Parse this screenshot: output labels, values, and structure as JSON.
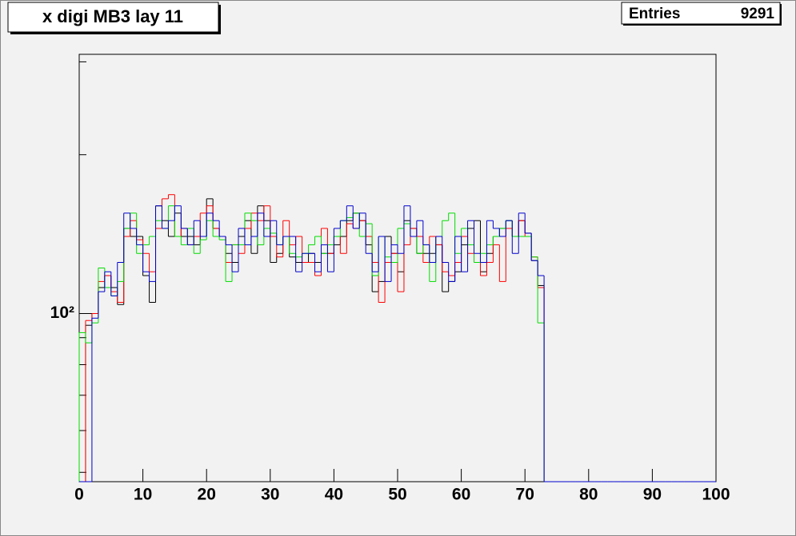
{
  "chart_data": {
    "type": "histogram",
    "title": "x digi MB3 lay 11",
    "stats": {
      "label": "Entries",
      "value": 9291
    },
    "bins": [
      0,
      1,
      2,
      3,
      4,
      5,
      6,
      7,
      8,
      9,
      10,
      11,
      12,
      13,
      14,
      15,
      16,
      17,
      18,
      19,
      20,
      21,
      22,
      23,
      24,
      25,
      26,
      27,
      28,
      29,
      30,
      31,
      32,
      33,
      34,
      35,
      36,
      37,
      38,
      39,
      40,
      41,
      42,
      43,
      44,
      45,
      46,
      47,
      48,
      49,
      50,
      51,
      52,
      53,
      54,
      55,
      56,
      57,
      58,
      59,
      60,
      61,
      62,
      63,
      64,
      65,
      66,
      67,
      68,
      69,
      70,
      71,
      72,
      73,
      74,
      75,
      76,
      77,
      78,
      79,
      80,
      81,
      82,
      83,
      84,
      85,
      86,
      87,
      88,
      89,
      90,
      91,
      92,
      93,
      94,
      95,
      96,
      97,
      98,
      99,
      100
    ],
    "series": [
      {
        "color": "#000000",
        "values": [
          0,
          95,
          100,
          112,
          118,
          112,
          104,
          145,
          140,
          140,
          118,
          105,
          160,
          150,
          140,
          155,
          140,
          140,
          135,
          140,
          165,
          145,
          140,
          130,
          125,
          140,
          150,
          130,
          160,
          150,
          125,
          130,
          140,
          128,
          125,
          125,
          130,
          125,
          130,
          130,
          135,
          140,
          150,
          155,
          150,
          135,
          110,
          115,
          140,
          130,
          120,
          150,
          145,
          130,
          130,
          130,
          135,
          110,
          115,
          120,
          135,
          145,
          150,
          120,
          130,
          140,
          145,
          150,
          140,
          150,
          142,
          126,
          113,
          0,
          0,
          0,
          0,
          0,
          0,
          0,
          0,
          0,
          0,
          0,
          0,
          0,
          0,
          0,
          0,
          0,
          0,
          0,
          0,
          0,
          0,
          0,
          0,
          0,
          0,
          0
        ]
      },
      {
        "color": "#ff0000",
        "values": [
          0,
          97,
          100,
          115,
          118,
          110,
          105,
          140,
          150,
          138,
          130,
          120,
          145,
          165,
          168,
          140,
          145,
          135,
          140,
          155,
          160,
          145,
          140,
          125,
          135,
          130,
          145,
          155,
          150,
          160,
          140,
          128,
          150,
          135,
          140,
          125,
          125,
          118,
          145,
          130,
          140,
          130,
          148,
          145,
          150,
          140,
          125,
          105,
          125,
          130,
          110,
          135,
          145,
          140,
          125,
          140,
          135,
          120,
          118,
          125,
          140,
          130,
          125,
          118,
          125,
          135,
          115,
          145,
          140,
          150,
          140,
          128,
          112,
          0,
          0,
          0,
          0,
          0,
          0,
          0,
          0,
          0,
          0,
          0,
          0,
          0,
          0,
          0,
          0,
          0,
          0,
          0,
          0,
          0,
          0,
          0,
          0,
          0,
          0,
          0
        ]
      },
      {
        "color": "#00dd00",
        "values": [
          92,
          88,
          96,
          122,
          112,
          108,
          115,
          145,
          155,
          130,
          135,
          140,
          150,
          145,
          160,
          140,
          135,
          145,
          130,
          138,
          150,
          140,
          138,
          115,
          135,
          135,
          155,
          150,
          135,
          145,
          142,
          135,
          140,
          130,
          128,
          130,
          135,
          140,
          130,
          135,
          140,
          150,
          152,
          155,
          140,
          148,
          118,
          140,
          128,
          125,
          145,
          148,
          140,
          130,
          135,
          115,
          140,
          150,
          155,
          130,
          145,
          135,
          125,
          130,
          135,
          140,
          145,
          150,
          140,
          140,
          140,
          128,
          96,
          0,
          0,
          0,
          0,
          0,
          0,
          0,
          0,
          0,
          0,
          0,
          0,
          0,
          0,
          0,
          0,
          0,
          0,
          0,
          0,
          0,
          0,
          0,
          0,
          0,
          0,
          0
        ]
      },
      {
        "color": "#0000cc",
        "values": [
          0,
          0,
          98,
          110,
          120,
          108,
          125,
          155,
          145,
          135,
          120,
          115,
          160,
          145,
          150,
          160,
          145,
          135,
          150,
          140,
          155,
          150,
          140,
          135,
          120,
          145,
          135,
          140,
          155,
          140,
          150,
          135,
          140,
          140,
          120,
          130,
          130,
          120,
          135,
          120,
          145,
          150,
          160,
          145,
          155,
          130,
          120,
          140,
          115,
          135,
          130,
          160,
          140,
          150,
          135,
          125,
          140,
          125,
          115,
          140,
          120,
          150,
          130,
          125,
          150,
          145,
          140,
          150,
          130,
          155,
          142,
          126,
          118,
          0,
          0,
          0,
          0,
          0,
          0,
          0,
          0,
          0,
          0,
          0,
          0,
          0,
          0,
          0,
          0,
          0,
          0,
          0,
          0,
          0,
          0,
          0,
          0,
          0,
          0,
          0
        ]
      }
    ],
    "xlim": [
      0,
      100
    ],
    "xticks": [
      0,
      10,
      20,
      30,
      40,
      50,
      60,
      70,
      80,
      90,
      100
    ],
    "ylim": [
      48,
      310
    ],
    "log_y": true,
    "yticks": [
      {
        "value": 100,
        "label": "10²"
      }
    ],
    "yminorticks": [
      50,
      60,
      70,
      80,
      90,
      200,
      300
    ]
  }
}
